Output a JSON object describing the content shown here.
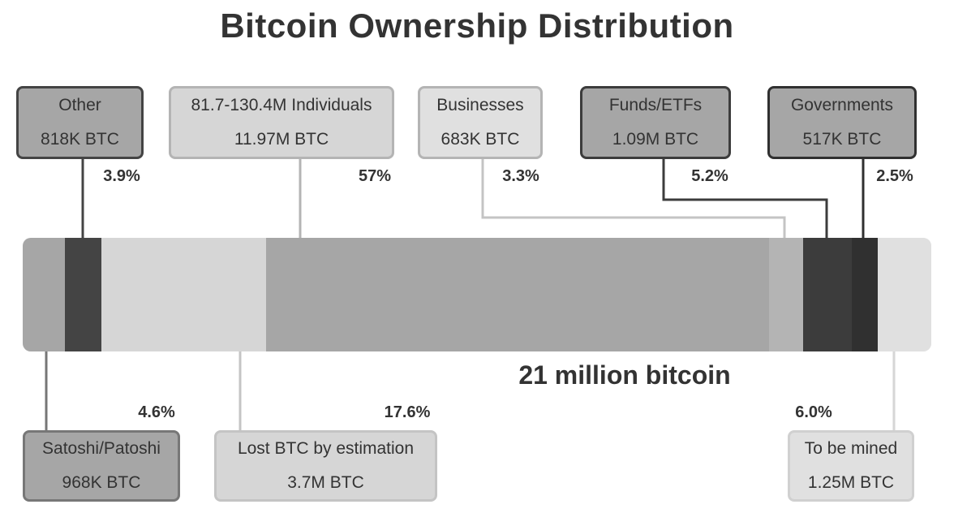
{
  "colors": {
    "text": "#333333",
    "track": "#e0e0e0"
  },
  "chart_data": {
    "type": "bar",
    "orientation": "horizontal-stacked",
    "title": "Bitcoin Ownership Distribution",
    "total_label": "21 million bitcoin",
    "total": 21,
    "unit": "million BTC",
    "segments": [
      {
        "label": "Satoshi/Patoshi",
        "amount_label": "968K BTC",
        "percent_label": "4.6%",
        "percent": 4.6,
        "color": "#a6a6a6",
        "position": "below"
      },
      {
        "label": "Other",
        "amount_label": "818K BTC",
        "percent_label": "3.9%",
        "percent": 3.9,
        "color": "#444444",
        "position": "above"
      },
      {
        "label": "Lost BTC by estimation",
        "amount_label": "3.7M BTC",
        "percent_label": "17.6%",
        "percent": 17.6,
        "color": "#d6d6d6",
        "position": "below"
      },
      {
        "label": "81.7-130.4M Individuals",
        "amount_label": "11.97M BTC",
        "percent_label": "57%",
        "percent": 57,
        "color": "#a6a6a6",
        "position": "above"
      },
      {
        "label": "Businesses",
        "amount_label": "683K BTC",
        "percent_label": "3.3%",
        "percent": 3.3,
        "color": "#b4b4b4",
        "position": "above"
      },
      {
        "label": "Funds/ETFs",
        "amount_label": "1.09M BTC",
        "percent_label": "5.2%",
        "percent": 5.2,
        "color": "#3c3c3c",
        "position": "above"
      },
      {
        "label": "Governments",
        "amount_label": "517K BTC",
        "percent_label": "2.5%",
        "percent": 2.5,
        "color": "#303030",
        "position": "above"
      },
      {
        "label": "To be mined",
        "amount_label": "1.25M BTC",
        "percent_label": "6.0%",
        "percent": 6.0,
        "color": "#e0e0e0",
        "position": "below"
      }
    ]
  }
}
